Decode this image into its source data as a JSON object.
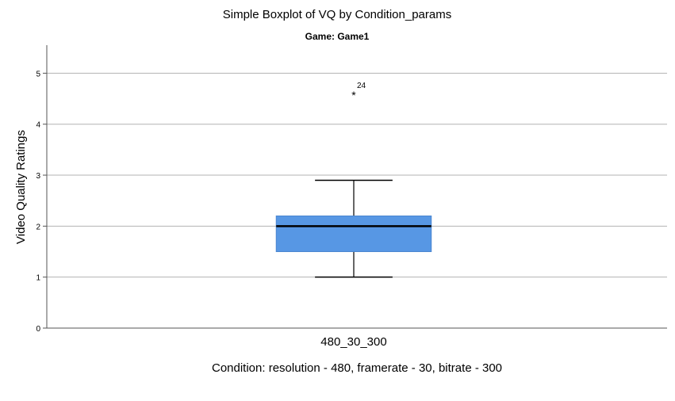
{
  "chart_data": {
    "type": "boxplot",
    "title": "Simple Boxplot of VQ by Condition_params",
    "subtitle": "Game: Game1",
    "xlabel": "Condition: resolution - 480, framerate - 30, bitrate - 300",
    "ylabel": "Video Quality Ratings",
    "ylim": [
      0,
      5.55
    ],
    "yticks": [
      0,
      1,
      2,
      3,
      4,
      5
    ],
    "grid": true,
    "categories": [
      "480_30_300"
    ],
    "boxes": [
      {
        "category": "480_30_300",
        "whisker_low": 1.0,
        "q1": 1.5,
        "median": 2.0,
        "q3": 2.2,
        "whisker_high": 2.9,
        "outliers": [
          {
            "value": 4.6,
            "label": "24",
            "marker": "*"
          }
        ]
      }
    ],
    "colors": {
      "box_fill": "#5797e4",
      "box_stroke": "#4a86d0",
      "grid": "#b3b3b3",
      "axis": "#555555",
      "median": "#000000"
    }
  }
}
